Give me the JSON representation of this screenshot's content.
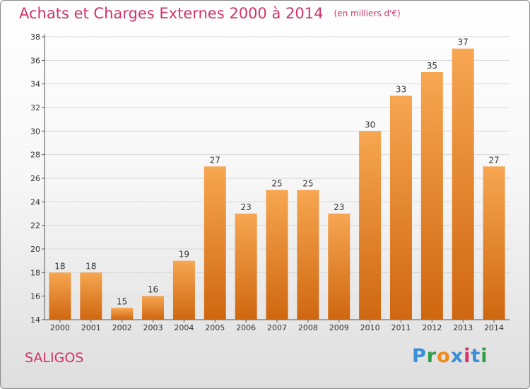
{
  "title": "Achats et Charges Externes 2000 à 2014",
  "subtitle": "(en milliers d'€)",
  "commune": "SALIGOS",
  "brand": {
    "letters": [
      "P",
      "r",
      "o",
      "x",
      "i",
      "t",
      "i"
    ],
    "colors": [
      "#3a8fd6",
      "#2f9e44",
      "#f08a1c",
      "#3a8fd6",
      "#d2336b",
      "#3a8fd6",
      "#2f9e44"
    ]
  },
  "colors": {
    "bar_top": "#f7a651",
    "bar_bottom": "#cf6710",
    "title": "#d2336b"
  },
  "chart_data": {
    "type": "bar",
    "title": "Achats et Charges Externes 2000 à 2014",
    "xlabel": "",
    "ylabel": "",
    "categories": [
      "2000",
      "2001",
      "2002",
      "2003",
      "2004",
      "2005",
      "2006",
      "2007",
      "2008",
      "2009",
      "2010",
      "2011",
      "2012",
      "2013",
      "2014"
    ],
    "values": [
      18,
      18,
      15,
      16,
      19,
      27,
      23,
      25,
      25,
      23,
      30,
      33,
      35,
      37,
      27
    ],
    "ylim": [
      14,
      38
    ],
    "yticks": [
      14,
      16,
      18,
      20,
      22,
      24,
      26,
      28,
      30,
      32,
      34,
      36,
      38
    ],
    "grid": true,
    "data_labels": true
  }
}
